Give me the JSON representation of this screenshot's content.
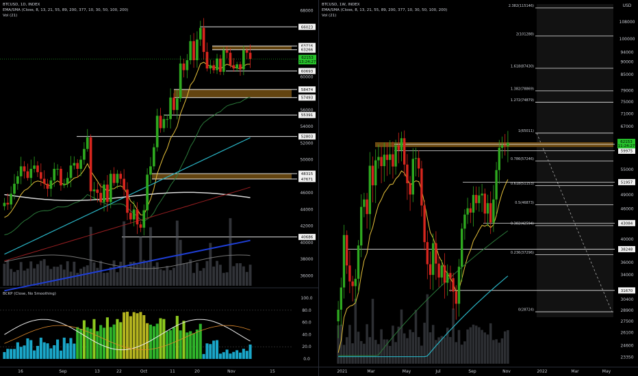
{
  "colors": {
    "up": "#2ea91f",
    "down": "#d7261e",
    "zone": "#6e4b12",
    "ema8": "#e8c23a",
    "ema21": "#2b7a3a",
    "ema55": "#2ab5c6",
    "sma200": "#d8d8d8",
    "ema377": "#9c1f22",
    "ema800": "#1f3fd8",
    "price_box": "#27c22b"
  },
  "left_chart": {
    "title": "BTCUSD, 1D, INDEX",
    "indicator": "EMA/SMA (Close, 8, 13, 21, 55, 89, 200, 377, 10, 30, 50, 100, 200)",
    "vol": "Vol (21)",
    "y_ticks": [
      "68000",
      "66023",
      "63716",
      "63266",
      "62153",
      "60693",
      "60000",
      "58474",
      "57493",
      "56000",
      "55391",
      "54000",
      "52803",
      "52000",
      "50000",
      "48315",
      "47671",
      "46000",
      "44000",
      "42000",
      "40686",
      "40000",
      "38000",
      "36000"
    ],
    "level_labels": [
      "66023",
      "63716",
      "63266",
      "60693",
      "58474",
      "57493",
      "55391",
      "52803",
      "48315",
      "47671",
      "40686"
    ],
    "current_price": "62153",
    "countdown": "13:24:27",
    "x_ticks": [
      "16",
      "Sep",
      "13",
      "22",
      "Oct",
      "11",
      "20",
      "Nov",
      "15"
    ],
    "osc_title": "BCKP (Close, No Smoothing)",
    "osc_ticks": [
      "100.0",
      "80.0",
      "60.0",
      "40.0",
      "20.0",
      "0.0"
    ]
  },
  "right_chart": {
    "title": "BTCUSD, 1W, INDEX",
    "indicator": "EMA/SMA (Close, 8, 13, 21, 55, 89, 200, 377, 10, 30, 50, 100, 200)",
    "vol": "Vol (21)",
    "y_ticks": [
      "USD",
      "108000",
      "100000",
      "94000",
      "90000",
      "85000",
      "79000",
      "75000",
      "71000",
      "67000",
      "62153",
      "61770",
      "59975",
      "55000",
      "51957",
      "49000",
      "46000",
      "43084",
      "40000",
      "38248",
      "36000",
      "34000",
      "31670",
      "30400",
      "28900",
      "27500",
      "26100",
      "24600",
      "23350"
    ],
    "level_labels": [
      "61770",
      "59975",
      "51957",
      "43084",
      "38248",
      "31670"
    ],
    "fib_labels": [
      "2.382(115146)",
      "2(101288)",
      "1.618(87430)",
      "1.382(78869)",
      "1.272(74879)",
      "1(65011)",
      "0.786(57246)",
      "0.618(51153)",
      "0.5(46873)",
      "0.382(42594)",
      "0.236(37296)",
      "0(28724)"
    ],
    "current_price": "62153",
    "countdown": "11:24:27",
    "x_ticks": [
      "2021",
      "Mar",
      "May",
      "Jul",
      "Sep",
      "Nov",
      "2022",
      "Mar",
      "May"
    ]
  },
  "chart_data": [
    {
      "type": "candlestick",
      "title": "BTCUSD, 1D, INDEX",
      "timeframe": "1D",
      "ylim": [
        34800,
        68600
      ],
      "horizontal_levels": [
        66023,
        63716,
        63266,
        60693,
        58474,
        57493,
        55391,
        52803,
        48315,
        47671,
        40686
      ],
      "zones": [
        [
          63266,
          63716
        ],
        [
          57493,
          58474
        ],
        [
          47671,
          48315
        ]
      ],
      "close_approx": [
        44800,
        44600,
        45900,
        47100,
        48000,
        49200,
        48600,
        47800,
        48900,
        49300,
        48500,
        47700,
        47100,
        46500,
        47500,
        48900,
        48900,
        46900,
        47100,
        47800,
        49300,
        49600,
        48900,
        50000,
        51300,
        52700,
        46200,
        46400,
        46000,
        44900,
        47000,
        44900,
        48300,
        47200,
        48300,
        47700,
        46400,
        43600,
        42800,
        44000,
        42200,
        41800,
        43900,
        48200,
        49200,
        51500,
        55300,
        53800,
        54900,
        54900,
        57500,
        56000,
        57400,
        61600,
        60800,
        62000,
        64300,
        62000,
        64500,
        65900,
        63000,
        61000,
        61400,
        60800,
        62200,
        60600,
        63200,
        62900,
        61400,
        61000,
        61500,
        60900,
        63200,
        62900,
        62153
      ],
      "oscillator": {
        "title": "BCKP (Close, No Smoothing)",
        "ylim": [
          0,
          100
        ]
      }
    },
    {
      "type": "candlestick",
      "title": "BTCUSD, 1W, INDEX",
      "timeframe": "1W",
      "ylim": [
        22800,
        116500
      ],
      "horizontal_levels": [
        61770,
        59975,
        51957,
        43084,
        38248,
        31670
      ],
      "fibonacci": [
        [
          2.382,
          115146
        ],
        [
          2,
          101288
        ],
        [
          1.618,
          87430
        ],
        [
          1.382,
          78869
        ],
        [
          1.272,
          74879
        ],
        [
          1,
          65011
        ],
        [
          0.786,
          57246
        ],
        [
          0.618,
          51153
        ],
        [
          0.5,
          46873
        ],
        [
          0.382,
          42594
        ],
        [
          0.236,
          37296
        ],
        [
          0,
          28724
        ]
      ],
      "close_approx": [
        29000,
        32100,
        40800,
        35500,
        33000,
        32300,
        33400,
        38900,
        46400,
        48000,
        44900,
        56000,
        51200,
        57400,
        58300,
        55900,
        58900,
        57500,
        59000,
        55800,
        61400,
        60100,
        63500,
        56300,
        51700,
        49100,
        57800,
        58000,
        55300,
        46700,
        39500,
        35700,
        34000,
        39300,
        35800,
        33600,
        35500,
        32800,
        34300,
        33500,
        31500,
        29800,
        35300,
        42000,
        44800,
        46100,
        45200,
        49000,
        47200,
        48900,
        49300,
        45000,
        47200,
        43200,
        48000,
        54900,
        60800,
        61500,
        61300,
        62153
      ]
    }
  ]
}
